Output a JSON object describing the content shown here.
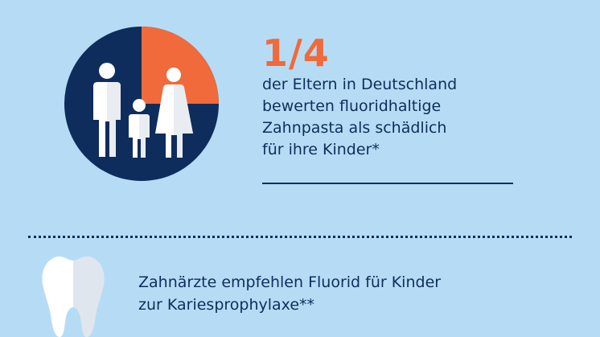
{
  "colors": {
    "background": "#b6dcf5",
    "navy": "#0f2d5c",
    "orange": "#f06a3b",
    "figure_white": "#ffffff",
    "figure_shade": "#e9edf2",
    "tooth_white": "#ffffff",
    "tooth_shade": "#dfe6ee"
  },
  "stat": {
    "value": "1/4",
    "share_fraction": 0.25,
    "text_lines": [
      "der Eltern in Deutschland",
      "bewerten fluoridhaltige",
      "Zahnpasta als schädlich",
      "für ihre Kinder*"
    ]
  },
  "family_icon": "family-icon",
  "tooth_icon": "tooth-icon",
  "recommendation": {
    "text_lines": [
      "Zahnärzte empfehlen Fluorid für Kinder",
      "zur Kariesprophylaxe**"
    ]
  }
}
